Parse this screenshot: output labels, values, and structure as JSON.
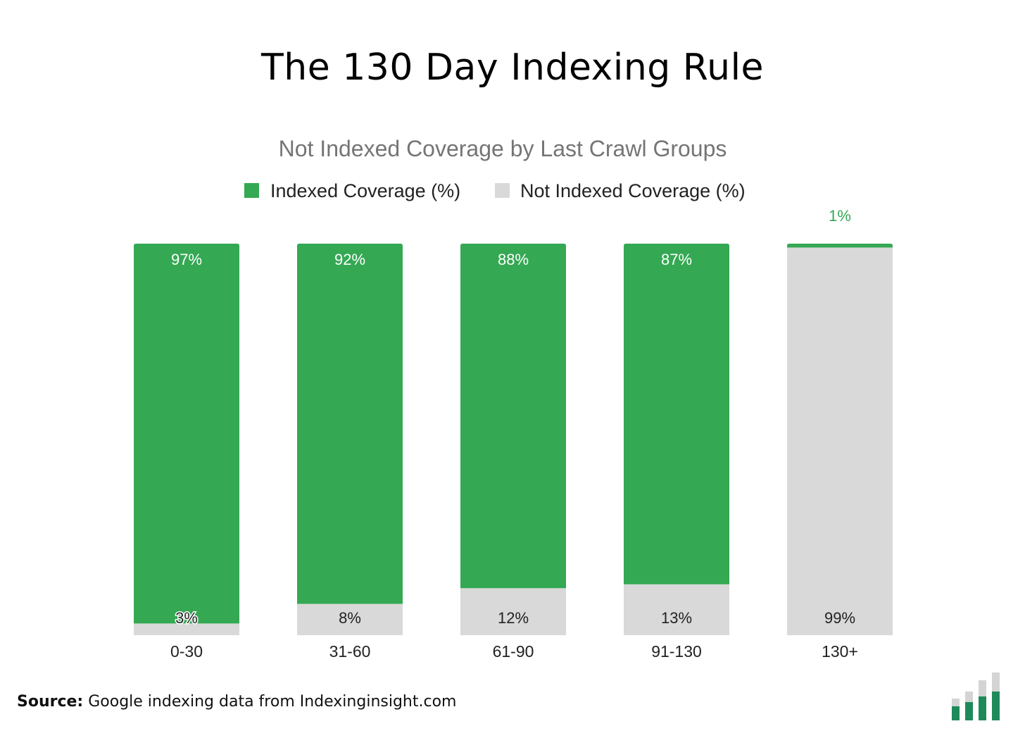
{
  "header": {
    "title": "The 130 Day Indexing Rule"
  },
  "chart_data": {
    "type": "bar",
    "stacked": true,
    "title": "Not Indexed Coverage by Last Crawl Groups",
    "xlabel": "",
    "ylabel": "",
    "ylim": [
      0,
      100
    ],
    "grid": false,
    "legend_position": "top-center",
    "categories": [
      "0-30",
      "31-60",
      "61-90",
      "91-130",
      "130+"
    ],
    "series": [
      {
        "name": "Indexed Coverage (%)",
        "color": "#34a853",
        "values": [
          97,
          92,
          88,
          87,
          1
        ],
        "labels": [
          "97%",
          "92%",
          "88%",
          "87%",
          "1%"
        ]
      },
      {
        "name": "Not Indexed Coverage (%)",
        "color": "#d9d9d9",
        "values": [
          3,
          8,
          12,
          13,
          99
        ],
        "labels": [
          "3%",
          "8%",
          "12%",
          "13%",
          "99%"
        ]
      }
    ]
  },
  "footer": {
    "source_label": "Source:",
    "source_text": "Google indexing data from Indexinginsight.com"
  },
  "colors": {
    "indexed": "#34a853",
    "not_indexed": "#d9d9d9",
    "brand_green": "#1e8a5a",
    "brand_gray": "#d4d4d4"
  }
}
